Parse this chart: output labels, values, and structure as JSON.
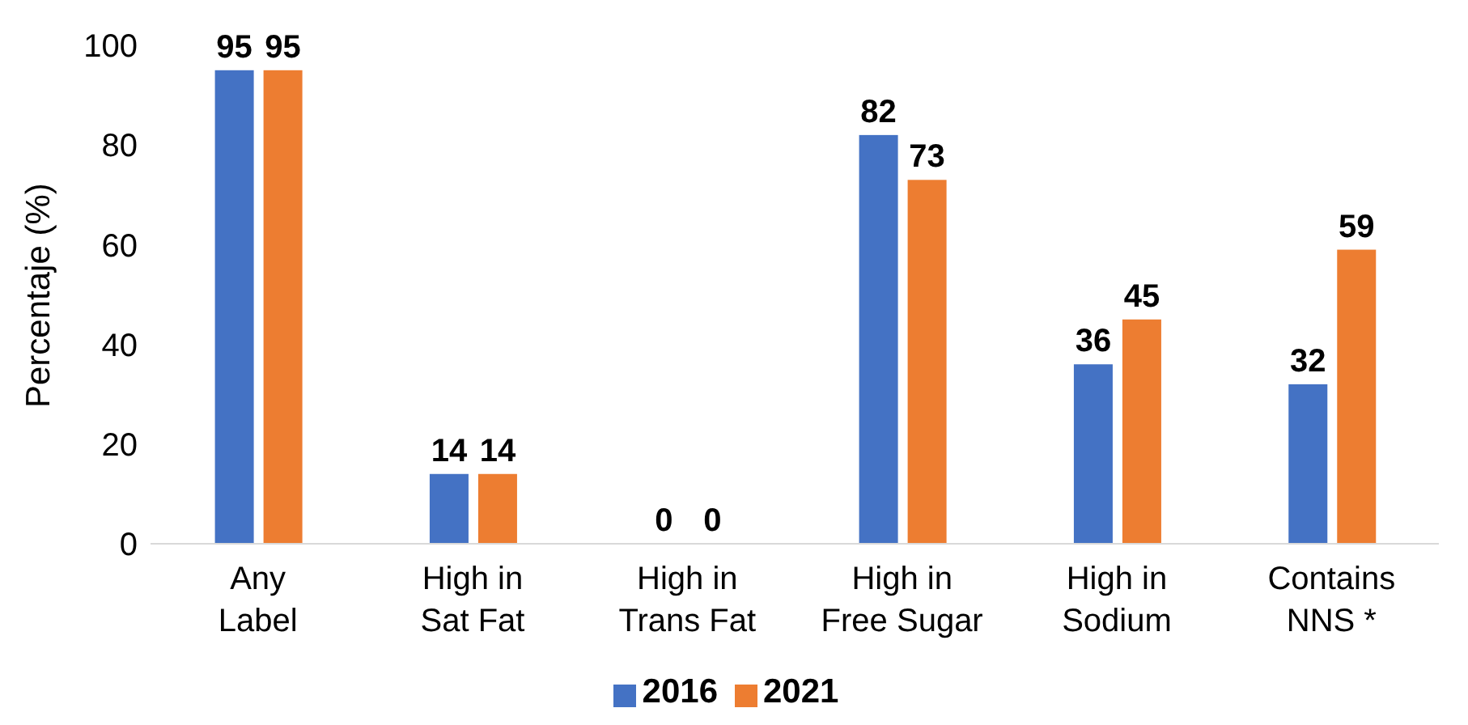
{
  "chart_data": {
    "type": "bar",
    "ylabel": "Percentaje (%)",
    "categories": [
      "Any Label",
      "High in Sat Fat",
      "High in Trans Fat",
      "High in Free Sugar",
      "High in Sodium",
      "Contains NNS *"
    ],
    "series": [
      {
        "name": "2016",
        "color": "#4472c4",
        "values": [
          95,
          14,
          0,
          82,
          36,
          32
        ]
      },
      {
        "name": "2021",
        "color": "#ed7d31",
        "values": [
          95,
          14,
          0,
          73,
          45,
          59
        ]
      }
    ],
    "ylim": [
      0,
      100
    ],
    "yticks": [
      0,
      20,
      40,
      60,
      80,
      100
    ],
    "grid": false,
    "legend": "bottom",
    "data_labels": true
  }
}
